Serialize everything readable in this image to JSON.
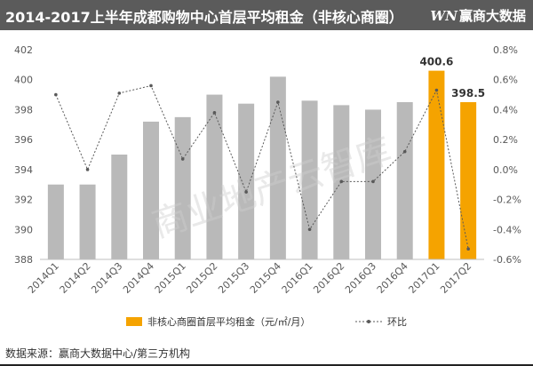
{
  "header": {
    "title": "2014-2017上半年成都购物中心首层平均租金（非核心商圈）",
    "brand_mark": "WN",
    "brand_text": "赢商大数据"
  },
  "source_label": "数据来源：赢商大数据中心/第三方机构",
  "watermark": "商业地产云智库",
  "colors": {
    "header_bg": "#5b5b5b",
    "bar_gray": "#b9b9b9",
    "bar_highlight": "#f5a300",
    "line": "#595959"
  },
  "chart_data": {
    "type": "bar",
    "categories": [
      "2014Q1",
      "2014Q2",
      "2014Q3",
      "2014Q4",
      "2015Q1",
      "2015Q2",
      "2015Q3",
      "2015Q4",
      "2016Q1",
      "2016Q2",
      "2016Q3",
      "2016Q4",
      "2017Q1",
      "2017Q2"
    ],
    "series": [
      {
        "name": "非核心商圈首层平均租金（元/㎡/月）",
        "type": "bar",
        "axis": "left",
        "values": [
          393.0,
          393.0,
          395.0,
          397.2,
          397.5,
          399.0,
          398.4,
          400.2,
          398.6,
          398.3,
          398.0,
          398.5,
          400.6,
          398.5
        ],
        "highlight_indices": [
          12,
          13
        ],
        "data_labels": {
          "12": "400.6",
          "13": "398.5"
        }
      },
      {
        "name": "环比",
        "type": "line",
        "axis": "right",
        "values": [
          0.5,
          0.0,
          0.51,
          0.56,
          0.07,
          0.38,
          -0.15,
          0.45,
          -0.4,
          -0.08,
          -0.08,
          0.12,
          0.53,
          -0.53
        ]
      }
    ],
    "y_left": {
      "min": 388,
      "max": 402,
      "ticks": [
        "388",
        "390",
        "392",
        "394",
        "396",
        "398",
        "400",
        "402"
      ]
    },
    "y_right": {
      "min": -0.6,
      "max": 0.8,
      "ticks": [
        "-0.6%",
        "-0.4%",
        "-0.2%",
        "0.0%",
        "0.2%",
        "0.4%",
        "0.6%",
        "0.8%"
      ]
    },
    "legend_position": "bottom-center",
    "grid": false
  }
}
